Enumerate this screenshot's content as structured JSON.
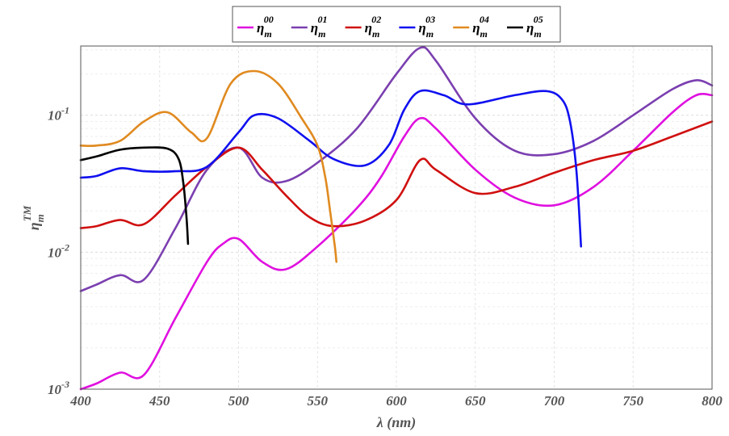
{
  "chart_data": {
    "type": "line",
    "xlabel": "λ (nm)",
    "ylabel": {
      "base": "η",
      "sup": "TM",
      "sub": "m"
    },
    "xlim": [
      400,
      800
    ],
    "ylim": [
      0.001,
      0.32
    ],
    "yscale": "log",
    "grid": true,
    "legend_position": "top",
    "x_ticks": [
      400,
      450,
      500,
      550,
      600,
      650,
      700,
      750,
      800
    ],
    "y_ticks": [
      {
        "value": 0.001,
        "base": "10",
        "exp": "-3"
      },
      {
        "value": 0.01,
        "base": "10",
        "exp": "-2"
      },
      {
        "value": 0.1,
        "base": "10",
        "exp": "-1"
      }
    ],
    "series": [
      {
        "name": "η_m^00",
        "base": "η",
        "sup": "00",
        "sub": "m",
        "color": "#e010e0",
        "x": [
          400,
          410,
          425,
          440,
          460,
          480,
          490,
          500,
          515,
          530,
          550,
          575,
          590,
          605,
          615,
          625,
          650,
          675,
          700,
          725,
          750,
          775,
          790,
          800
        ],
        "y": [
          0.001,
          0.0011,
          0.00132,
          0.00127,
          0.0033,
          0.0085,
          0.0115,
          0.0125,
          0.0085,
          0.0075,
          0.011,
          0.021,
          0.035,
          0.07,
          0.095,
          0.08,
          0.04,
          0.025,
          0.022,
          0.03,
          0.055,
          0.105,
          0.14,
          0.14
        ]
      },
      {
        "name": "η_m^01",
        "base": "η",
        "sup": "01",
        "sub": "m",
        "color": "#7b3fb0",
        "x": [
          400,
          410,
          425,
          440,
          460,
          480,
          500,
          515,
          530,
          550,
          575,
          600,
          615,
          625,
          650,
          675,
          700,
          725,
          750,
          775,
          790,
          800
        ],
        "y": [
          0.0052,
          0.0058,
          0.0068,
          0.0063,
          0.015,
          0.04,
          0.058,
          0.035,
          0.033,
          0.045,
          0.08,
          0.2,
          0.31,
          0.25,
          0.095,
          0.055,
          0.052,
          0.065,
          0.1,
          0.155,
          0.18,
          0.165
        ]
      },
      {
        "name": "η_m^02",
        "base": "η",
        "sup": "02",
        "sub": "m",
        "color": "#d01010",
        "x": [
          400,
          410,
          425,
          440,
          460,
          480,
          500,
          515,
          530,
          545,
          560,
          580,
          600,
          615,
          625,
          650,
          675,
          700,
          725,
          750,
          775,
          800
        ],
        "y": [
          0.015,
          0.0155,
          0.0172,
          0.016,
          0.026,
          0.042,
          0.058,
          0.04,
          0.026,
          0.018,
          0.0155,
          0.017,
          0.024,
          0.047,
          0.04,
          0.027,
          0.03,
          0.038,
          0.047,
          0.055,
          0.07,
          0.09
        ]
      },
      {
        "name": "η_m^03",
        "base": "η",
        "sup": "03",
        "sub": "m",
        "color": "#1010f0",
        "x": [
          400,
          410,
          425,
          440,
          460,
          480,
          500,
          510,
          525,
          545,
          560,
          580,
          595,
          605,
          615,
          630,
          645,
          675,
          695,
          705,
          710,
          714,
          717
        ],
        "y": [
          0.035,
          0.036,
          0.041,
          0.039,
          0.039,
          0.042,
          0.075,
          0.1,
          0.095,
          0.065,
          0.048,
          0.043,
          0.06,
          0.11,
          0.15,
          0.14,
          0.12,
          0.14,
          0.15,
          0.13,
          0.09,
          0.04,
          0.011
        ]
      },
      {
        "name": "η_m^04",
        "base": "η",
        "sup": "04",
        "sub": "m",
        "color": "#e08a20",
        "x": [
          400,
          410,
          425,
          440,
          455,
          470,
          480,
          495,
          510,
          525,
          540,
          550,
          555,
          558,
          561,
          562
        ],
        "y": [
          0.06,
          0.06,
          0.065,
          0.09,
          0.105,
          0.075,
          0.068,
          0.17,
          0.21,
          0.17,
          0.095,
          0.06,
          0.035,
          0.02,
          0.011,
          0.0085
        ]
      },
      {
        "name": "η_m^05",
        "base": "η",
        "sup": "05",
        "sub": "m",
        "color": "#000000",
        "x": [
          400,
          410,
          425,
          440,
          455,
          462,
          465,
          467,
          468
        ],
        "y": [
          0.047,
          0.05,
          0.056,
          0.058,
          0.057,
          0.048,
          0.032,
          0.018,
          0.0115
        ]
      }
    ]
  }
}
